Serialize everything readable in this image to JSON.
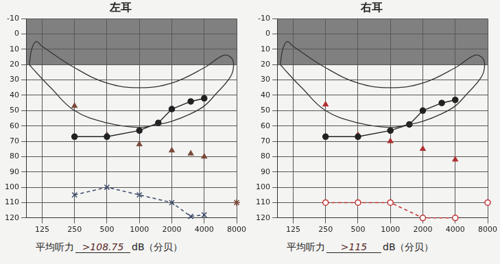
{
  "chart_data": [
    {
      "type": "line",
      "title": "左耳",
      "footer": {
        "label": "平均听力",
        "value": ">108.75",
        "unit": "dB（分贝）"
      },
      "log": "x",
      "grid": true,
      "xlim": [
        90,
        8000
      ],
      "xticks": [
        125,
        250,
        500,
        1000,
        2000,
        4000,
        8000
      ],
      "ylim": [
        120,
        -10
      ],
      "yticks": [
        -10,
        0,
        10,
        20,
        30,
        40,
        50,
        60,
        70,
        80,
        90,
        100,
        110,
        120
      ],
      "shaded": [
        -10,
        20
      ],
      "series": [
        {
          "x": [
            95,
            100,
            110,
            125,
            250,
            500,
            1000,
            2000,
            4000,
            6000,
            7000,
            7500,
            7000,
            5000,
            4000,
            3000,
            2000,
            1500,
            1000,
            500,
            250,
            150,
            110,
            95
          ],
          "values": [
            20,
            10,
            5,
            8,
            22,
            32,
            35,
            32,
            22,
            14,
            15,
            20,
            28,
            40,
            47,
            52,
            57,
            59,
            61,
            58,
            50,
            35,
            25,
            20
          ],
          "color": "#333333",
          "marker": "none",
          "line_style": "smooth"
        },
        {
          "x": [
            250,
            500,
            1000,
            1500,
            2000,
            3000,
            4000
          ],
          "values": [
            67,
            67,
            63,
            58,
            49,
            44,
            42
          ],
          "color": "#222222",
          "marker": "dot",
          "line_style": "solid"
        },
        {
          "x": [
            250,
            500,
            1000,
            2000,
            3000,
            4000
          ],
          "values": [
            47,
            66,
            72,
            76,
            78,
            80
          ],
          "color": "#7a4a3a",
          "marker": "triangle",
          "line_style": "none"
        },
        {
          "x": [
            250,
            500,
            1000,
            2000,
            3000,
            4000
          ],
          "values": [
            105,
            100,
            105,
            110,
            119,
            118
          ],
          "color": "#3a4a6b",
          "marker": "x",
          "line_style": "dashed"
        },
        {
          "x": [
            8000
          ],
          "values": [
            110
          ],
          "color": "#7a4a3a",
          "marker": "star",
          "line_style": "none"
        }
      ]
    },
    {
      "type": "line",
      "title": "右耳",
      "footer": {
        "label": "平均听力",
        "value": ">115",
        "unit": "dB（分贝）"
      },
      "log": "x",
      "grid": true,
      "xlim": [
        90,
        8000
      ],
      "xticks": [
        125,
        250,
        500,
        1000,
        2000,
        4000,
        8000
      ],
      "ylim": [
        120,
        -10
      ],
      "yticks": [
        -10,
        0,
        10,
        20,
        30,
        40,
        50,
        60,
        70,
        80,
        90,
        100,
        110,
        120
      ],
      "shaded": [
        -10,
        20
      ],
      "series": [
        {
          "x": [
            95,
            100,
            110,
            125,
            250,
            500,
            1000,
            2000,
            4000,
            6000,
            7000,
            7500,
            7000,
            5000,
            4000,
            3000,
            2000,
            1500,
            1000,
            500,
            250,
            150,
            110,
            95
          ],
          "values": [
            20,
            10,
            5,
            8,
            22,
            32,
            35,
            32,
            22,
            14,
            15,
            20,
            28,
            40,
            47,
            52,
            57,
            59,
            61,
            58,
            50,
            35,
            25,
            20
          ],
          "color": "#333333",
          "marker": "none",
          "line_style": "smooth"
        },
        {
          "x": [
            250,
            500,
            1000,
            1500,
            2000,
            3000,
            4000
          ],
          "values": [
            67,
            67,
            63,
            59,
            50,
            45,
            43
          ],
          "color": "#222222",
          "marker": "dot",
          "line_style": "solid"
        },
        {
          "x": [
            250,
            500,
            1000,
            2000,
            4000
          ],
          "values": [
            46,
            66,
            70,
            75,
            82
          ],
          "color": "#b03030",
          "marker": "triangle",
          "line_style": "none"
        },
        {
          "x": [
            250,
            500,
            1000,
            2000,
            4000
          ],
          "values": [
            110,
            110,
            110,
            120,
            120
          ],
          "color": "#c03030",
          "marker": "circle",
          "line_style": "dashed"
        },
        {
          "x": [
            8000
          ],
          "values": [
            110
          ],
          "color": "#c03030",
          "marker": "circle",
          "line_style": "none"
        }
      ]
    }
  ]
}
